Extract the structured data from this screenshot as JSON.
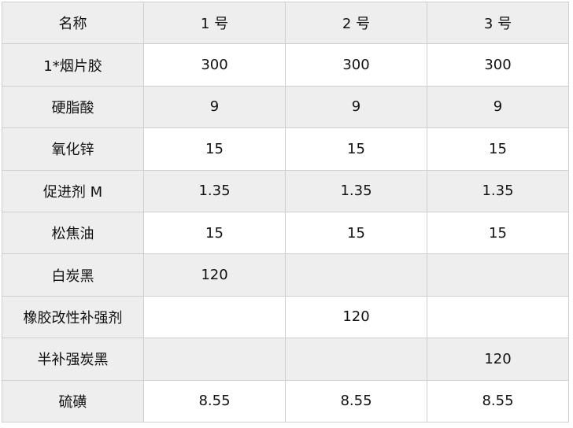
{
  "table": {
    "headers": [
      "名称",
      "1 号",
      "2 号",
      "3 号"
    ],
    "rows": [
      [
        "1*烟片胶",
        "300",
        "300",
        "300"
      ],
      [
        "硬脂酸",
        "9",
        "9",
        "9"
      ],
      [
        "氧化锌",
        "15",
        "15",
        "15"
      ],
      [
        "促进剂 M",
        "1.35",
        "1.35",
        "1.35"
      ],
      [
        "松焦油",
        "15",
        "15",
        "15"
      ],
      [
        "白炭黑",
        "120",
        "",
        ""
      ],
      [
        "橡胶改性补强剂",
        "",
        "120",
        ""
      ],
      [
        "半补强炭黑",
        "",
        "",
        "120"
      ],
      [
        "硫磺",
        "8.55",
        "8.55",
        "8.55"
      ]
    ]
  }
}
